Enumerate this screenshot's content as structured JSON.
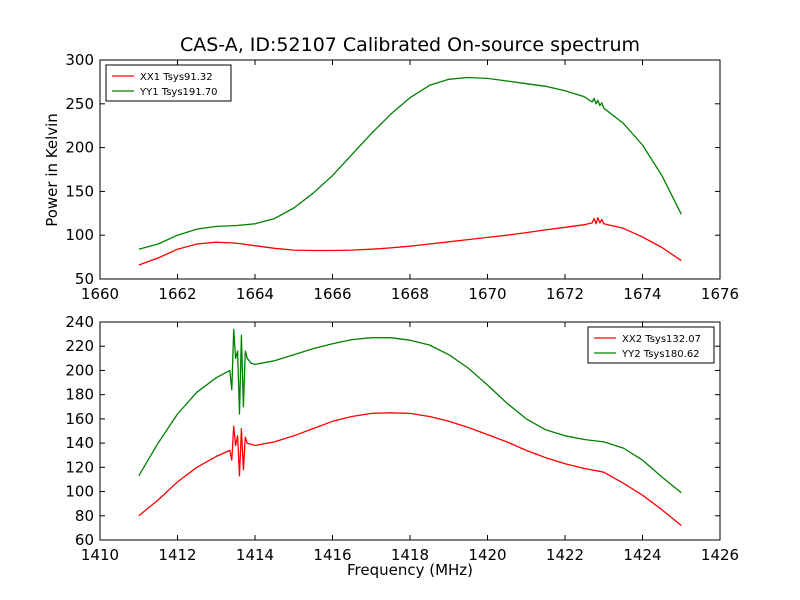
{
  "chart_data": [
    {
      "type": "line",
      "title": "CAS-A, ID:52107 Calibrated On-source spectrum",
      "xlabel": "",
      "ylabel": "Power in Kelvin",
      "xlim": [
        1660,
        1676
      ],
      "ylim": [
        50,
        300
      ],
      "xticks": [
        "1660",
        "1662",
        "1664",
        "1666",
        "1668",
        "1670",
        "1672",
        "1674",
        "1676"
      ],
      "yticks": [
        "50",
        "100",
        "150",
        "200",
        "250",
        "300"
      ],
      "legend_position": "top-left",
      "series": [
        {
          "name": "XX1 Tsys91.32",
          "color": "#ff0000",
          "x": [
            1661.0,
            1661.5,
            1662.0,
            1662.5,
            1663.0,
            1663.5,
            1664.0,
            1664.5,
            1665.0,
            1665.5,
            1666.0,
            1666.5,
            1667.0,
            1667.5,
            1668.0,
            1668.5,
            1669.0,
            1669.5,
            1670.0,
            1670.5,
            1671.0,
            1671.5,
            1672.0,
            1672.5,
            1672.7,
            1672.75,
            1672.8,
            1672.85,
            1672.9,
            1672.95,
            1673.0,
            1673.5,
            1674.0,
            1674.5,
            1675.0
          ],
          "y": [
            66,
            74,
            84,
            90,
            92,
            91,
            88,
            85,
            83,
            82.5,
            82.5,
            83,
            84,
            85.5,
            87.5,
            90,
            92.5,
            95,
            97.5,
            100,
            103,
            106,
            109,
            112,
            114,
            119,
            113,
            120,
            114,
            118,
            113,
            108,
            98,
            86,
            71
          ]
        },
        {
          "name": "YY1 Tsys191.70",
          "color": "#008000",
          "x": [
            1661.0,
            1661.5,
            1662.0,
            1662.5,
            1663.0,
            1663.5,
            1664.0,
            1664.5,
            1665.0,
            1665.5,
            1666.0,
            1666.5,
            1667.0,
            1667.5,
            1668.0,
            1668.5,
            1669.0,
            1669.5,
            1670.0,
            1670.5,
            1671.0,
            1671.5,
            1672.0,
            1672.5,
            1672.7,
            1672.75,
            1672.8,
            1672.85,
            1672.9,
            1672.95,
            1673.0,
            1673.5,
            1674.0,
            1674.5,
            1675.0
          ],
          "y": [
            84,
            90,
            100,
            107,
            110,
            111,
            113,
            119,
            131,
            148,
            168,
            192,
            216,
            238,
            257,
            271,
            278,
            280,
            279,
            276,
            273,
            270,
            265,
            258,
            252,
            256,
            250,
            254,
            248,
            251,
            245,
            228,
            203,
            168,
            124
          ]
        }
      ]
    },
    {
      "type": "line",
      "title": "",
      "xlabel": "Frequency (MHz)",
      "ylabel": "",
      "xlim": [
        1410,
        1426
      ],
      "ylim": [
        60,
        240
      ],
      "xticks": [
        "1410",
        "1412",
        "1414",
        "1416",
        "1418",
        "1420",
        "1422",
        "1424",
        "1426"
      ],
      "yticks": [
        "60",
        "80",
        "100",
        "120",
        "140",
        "160",
        "180",
        "200",
        "220",
        "240"
      ],
      "legend_position": "top-right",
      "series": [
        {
          "name": "XX2 Tsys132.07",
          "color": "#ff0000",
          "x": [
            1411.0,
            1411.5,
            1412.0,
            1412.5,
            1413.0,
            1413.35,
            1413.4,
            1413.45,
            1413.5,
            1413.55,
            1413.6,
            1413.65,
            1413.7,
            1413.75,
            1413.8,
            1413.9,
            1414.0,
            1414.5,
            1415.0,
            1415.5,
            1416.0,
            1416.5,
            1417.0,
            1417.5,
            1418.0,
            1418.5,
            1419.0,
            1419.5,
            1420.0,
            1420.5,
            1421.0,
            1421.5,
            1422.0,
            1422.5,
            1423.0,
            1423.5,
            1424.0,
            1424.5,
            1425.0
          ],
          "y": [
            80,
            93,
            108,
            120,
            129,
            134,
            126,
            154,
            138,
            146,
            113,
            152,
            118,
            145,
            140,
            139,
            138,
            141,
            146,
            152,
            158,
            162,
            164.5,
            165,
            164.5,
            162,
            158,
            153,
            147,
            141,
            134,
            128,
            123,
            119,
            116,
            107,
            97,
            85,
            72
          ]
        },
        {
          "name": "YY2 Tsys180.62",
          "color": "#008000",
          "x": [
            1411.0,
            1411.5,
            1412.0,
            1412.5,
            1413.0,
            1413.35,
            1413.4,
            1413.45,
            1413.5,
            1413.55,
            1413.6,
            1413.65,
            1413.7,
            1413.75,
            1413.8,
            1413.9,
            1414.0,
            1414.5,
            1415.0,
            1415.5,
            1416.0,
            1416.5,
            1417.0,
            1417.5,
            1418.0,
            1418.5,
            1419.0,
            1419.5,
            1420.0,
            1420.5,
            1421.0,
            1421.5,
            1422.0,
            1422.5,
            1423.0,
            1423.5,
            1424.0,
            1424.5,
            1425.0
          ],
          "y": [
            113,
            140,
            164,
            182,
            194,
            200,
            184,
            234,
            210,
            216,
            164,
            229,
            170,
            216,
            210,
            206,
            205,
            208,
            213,
            218,
            222,
            225.5,
            227,
            227,
            225,
            221,
            213,
            202,
            188,
            173,
            160,
            151,
            146,
            143,
            141,
            136,
            126,
            112,
            99
          ]
        }
      ]
    }
  ]
}
